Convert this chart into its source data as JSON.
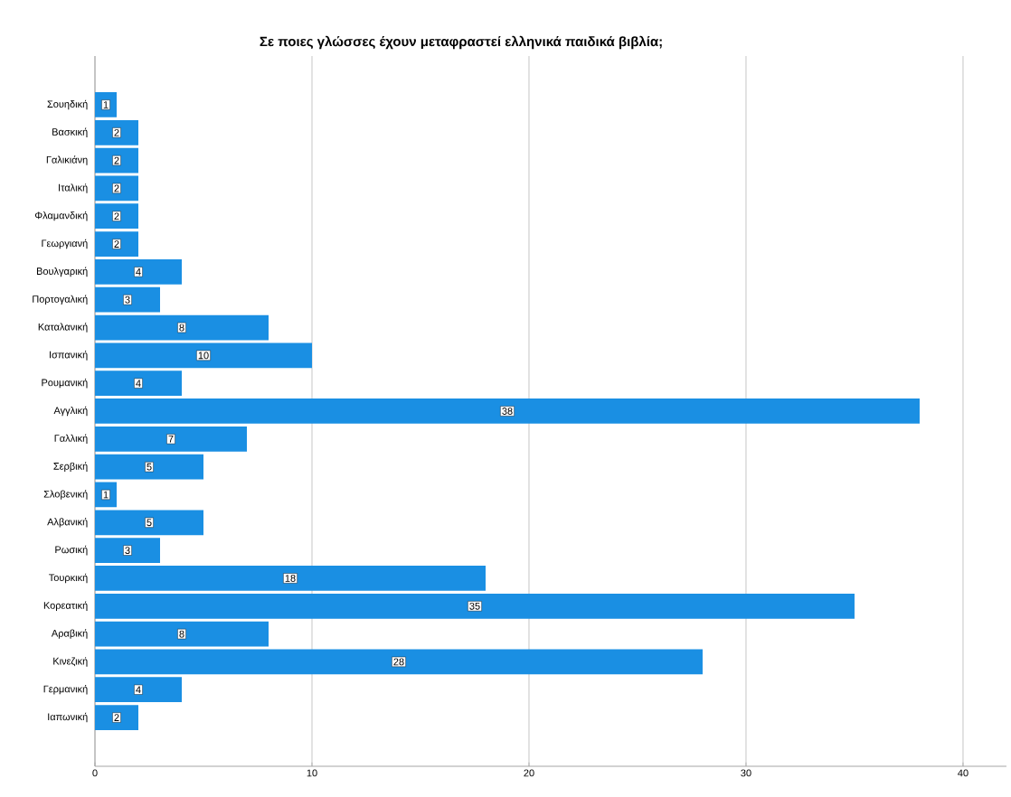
{
  "chart_data": {
    "type": "bar",
    "orientation": "horizontal",
    "title": "Σε ποιες γλώσσες έχουν μεταφραστεί ελληνικά παιδικά βιβλία;",
    "categories": [
      "Σουηδική",
      "Βασκική",
      "Γαλικιάνη",
      "Ιταλική",
      "Φλαμανδική",
      "Γεωργιανή",
      "Βουλγαρική",
      "Πορτογαλική",
      "Καταλανική",
      "Ισπανική",
      "Ρουμανική",
      "Αγγλική",
      "Γαλλική",
      "Σερβική",
      "Σλοβενική",
      "Αλβανική",
      "Ρωσική",
      "Τουρκική",
      "Κορεατική",
      "Αραβική",
      "Κινεζική",
      "Γερμανική",
      "Ιαπωνική"
    ],
    "values": [
      1,
      2,
      2,
      2,
      2,
      2,
      4,
      3,
      8,
      10,
      4,
      38,
      7,
      5,
      1,
      5,
      3,
      18,
      35,
      8,
      28,
      4,
      2
    ],
    "color": "#1a8fe3",
    "xlim": [
      0,
      42
    ],
    "xticks": [
      0,
      10,
      20,
      30,
      40
    ],
    "grid": "x",
    "data_labels": true
  }
}
